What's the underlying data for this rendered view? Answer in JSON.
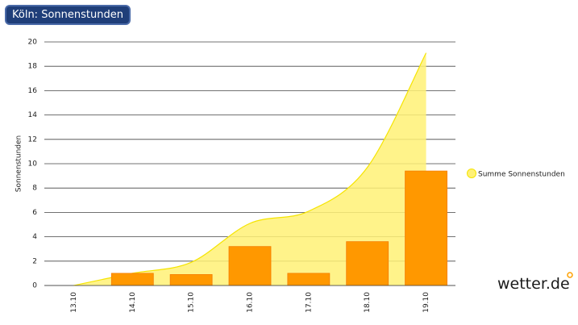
{
  "header": {
    "title": "Köln: Sonnenstunden",
    "logo": "wetter.de"
  },
  "chart_data": {
    "type": "bar",
    "y_label": "Sonnenstunden",
    "categories": [
      "13.10",
      "14.10",
      "15.10",
      "16.10",
      "17.10",
      "18.10",
      "19.10"
    ],
    "series": [
      {
        "type": "area",
        "name": "Summe Sonnenstunden",
        "color": "#fff176",
        "line_color": "#f5e400",
        "values": [
          0,
          1.0,
          1.9,
          5.1,
          6.1,
          9.7,
          19.1
        ]
      },
      {
        "type": "bar",
        "color": "#ff9800",
        "values": [
          0,
          1.0,
          0.9,
          3.2,
          1.0,
          3.6,
          9.4
        ]
      }
    ],
    "ylim": [
      0,
      20
    ],
    "yticks": [
      0,
      2,
      4,
      6,
      8,
      10,
      12,
      14,
      16,
      18,
      20
    ],
    "grid": true,
    "legend": "right"
  }
}
